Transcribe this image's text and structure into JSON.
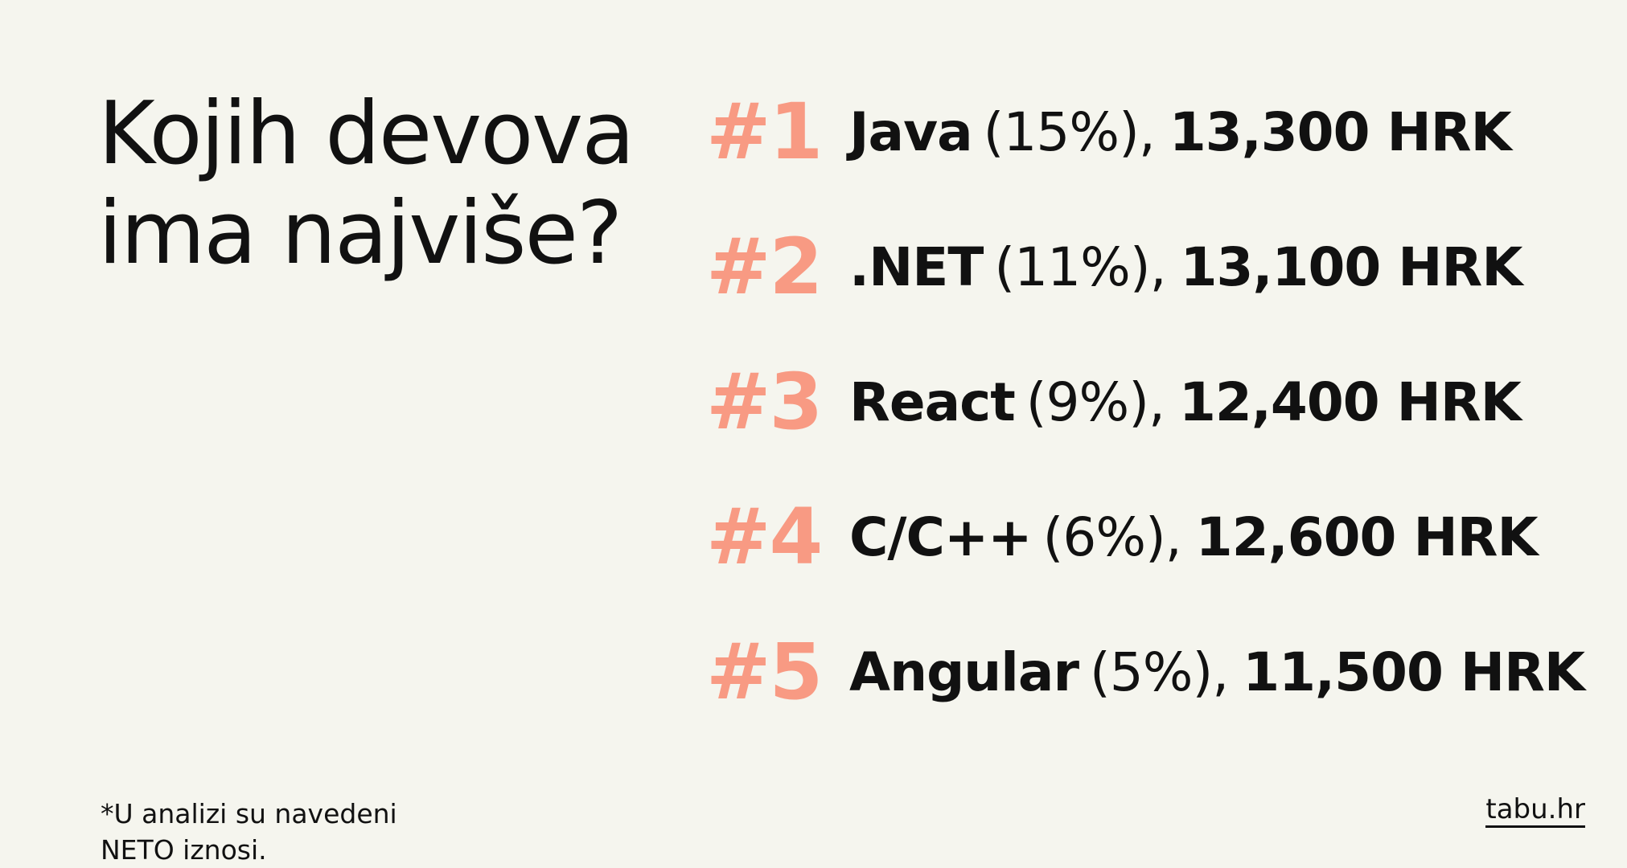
{
  "title": {
    "lines": [
      "Kojih devova",
      "ima najviše?"
    ]
  },
  "items": [
    {
      "rank": "#1",
      "name": "Java",
      "share": "(15%),",
      "salary": "13,300 HRK"
    },
    {
      "rank": "#2",
      "name": ".NET",
      "share": "(11%),",
      "salary": "13,100 HRK"
    },
    {
      "rank": "#3",
      "name": "React",
      "share": "(9%),",
      "salary": "12,400 HRK"
    },
    {
      "rank": "#4",
      "name": "C/C++",
      "share": "(6%),",
      "salary": "12,600 HRK"
    },
    {
      "rank": "#5",
      "name": "Angular",
      "share": "(5%),",
      "salary": "11,500 HRK"
    }
  ],
  "footnote": {
    "lines": [
      "*U analizi su navedeni",
      "NETO iznosi."
    ]
  },
  "brand": "tabu.hr"
}
